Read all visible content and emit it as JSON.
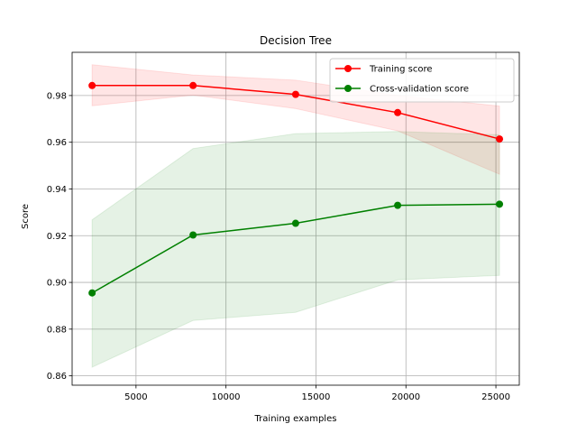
{
  "chart_data": {
    "type": "line",
    "title": "Decision Tree",
    "xlabel": "Training examples",
    "ylabel": "Score",
    "xlim": [
      1450,
      26300
    ],
    "ylim": [
      0.856,
      0.9985
    ],
    "x_ticks": [
      5000,
      10000,
      15000,
      20000,
      25000
    ],
    "y_ticks": [
      0.86,
      0.88,
      0.9,
      0.92,
      0.94,
      0.96,
      0.98
    ],
    "x_tick_labels": [
      "5000",
      "10000",
      "15000",
      "20000",
      "25000"
    ],
    "y_tick_labels": [
      "0.86",
      "0.88",
      "0.90",
      "0.92",
      "0.94",
      "0.96",
      "0.98"
    ],
    "grid": true,
    "legend_position": "top-right",
    "x": [
      2560,
      8170,
      13870,
      19540,
      25200
    ],
    "series": [
      {
        "name": "Training score",
        "color": "#ff0000",
        "values": [
          0.9843,
          0.9843,
          0.9805,
          0.9727,
          0.9614
        ],
        "band_upper": [
          0.9932,
          0.9888,
          0.9866,
          0.98,
          0.9755
        ],
        "band_lower": [
          0.9756,
          0.9802,
          0.9744,
          0.9649,
          0.9463
        ]
      },
      {
        "name": "Cross-validation score",
        "color": "#008000",
        "values": [
          0.8955,
          0.9203,
          0.9253,
          0.933,
          0.9335
        ],
        "band_upper": [
          0.9268,
          0.9573,
          0.9637,
          0.9646,
          0.9632
        ],
        "band_lower": [
          0.8637,
          0.8837,
          0.8872,
          0.9011,
          0.903
        ]
      }
    ]
  }
}
